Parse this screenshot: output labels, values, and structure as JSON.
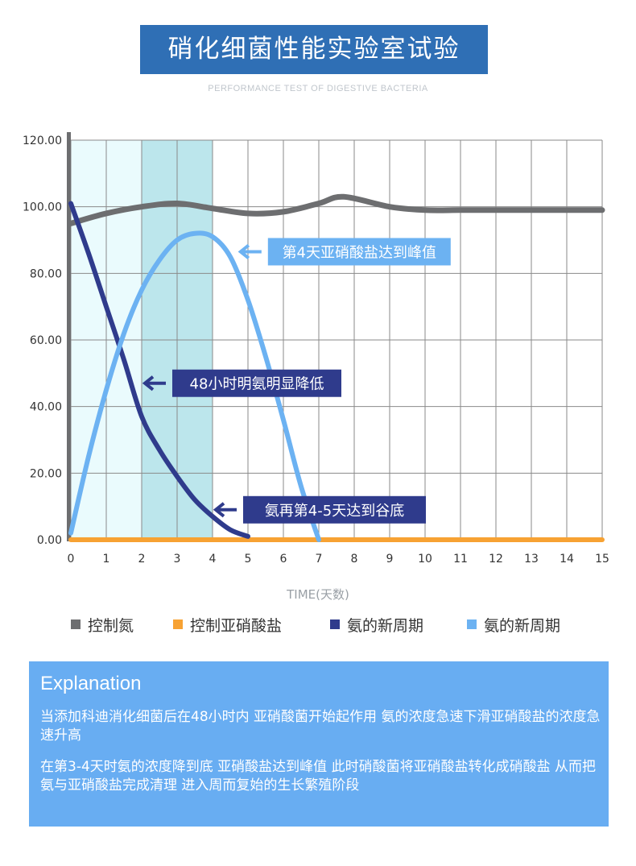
{
  "header": {
    "title": "硝化细菌性能实验室试验",
    "subtitle": "PERFORMANCE TEST OF DIGESTIVE BACTERIA"
  },
  "chart_data": {
    "type": "line",
    "xlabel": "TIME(天数)",
    "ylabel": "",
    "xlim": [
      0,
      15
    ],
    "ylim": [
      0,
      120
    ],
    "x_ticks": [
      "0",
      "1",
      "2",
      "3",
      "4",
      "5",
      "6",
      "7",
      "8",
      "9",
      "10",
      "11",
      "12",
      "13",
      "14",
      "15"
    ],
    "y_ticks": [
      "0.00",
      "20.00",
      "40.00",
      "60.00",
      "80.00",
      "100.00",
      "120.00"
    ],
    "grid": true,
    "highlight_bands": [
      {
        "x0": 0,
        "x1": 2,
        "color": "#eafbfd"
      },
      {
        "x0": 2,
        "x1": 4,
        "color": "#bce6ec"
      }
    ],
    "series": [
      {
        "name": "控制氮",
        "color": "#6d6e70",
        "x": [
          0,
          1,
          2,
          3,
          4,
          5,
          6,
          7,
          7.7,
          9,
          10,
          11,
          12,
          13,
          14,
          15
        ],
        "y": [
          95,
          98,
          100,
          101,
          99.5,
          98,
          98.5,
          101,
          103,
          100,
          99,
          99,
          99,
          99,
          99,
          99
        ]
      },
      {
        "name": "控制亚硝酸盐",
        "color": "#f7a233",
        "x": [
          0,
          15
        ],
        "y": [
          0,
          0
        ]
      },
      {
        "name": "氨的新周期",
        "color": "#2f3b8c",
        "x": [
          0,
          0.5,
          1,
          1.5,
          2,
          2.5,
          3,
          3.5,
          4,
          4.5,
          5
        ],
        "y": [
          101,
          86,
          70,
          54,
          37,
          27,
          19,
          12,
          7,
          3,
          1
        ]
      },
      {
        "name": "氨的新周期",
        "color": "#6cb2f2",
        "x": [
          0,
          0.5,
          1,
          1.5,
          2,
          2.5,
          3,
          3.5,
          4,
          4.5,
          5,
          5.5,
          6,
          6.5,
          7
        ],
        "y": [
          2,
          25,
          45,
          62,
          75,
          84,
          90,
          92,
          91,
          85,
          72,
          55,
          36,
          16,
          0
        ]
      }
    ],
    "annotations": [
      {
        "text": "第4天亚硝酸盐达到峰值",
        "bg": "#6cb2f2",
        "arrow_color": "#6cb2f2",
        "x": 4.7,
        "y": 86.5
      },
      {
        "text": "48小时明氨明显降低",
        "bg": "#2f3b8c",
        "arrow_color": "#2f3b8c",
        "x": 2.0,
        "y": 47
      },
      {
        "text": "氨再第4-5天达到谷底",
        "bg": "#2f3b8c",
        "arrow_color": "#2f3b8c",
        "x": 4.0,
        "y": 9
      }
    ]
  },
  "legend": {
    "items": [
      {
        "label": "控制氮",
        "color": "#6d6e70"
      },
      {
        "label": "控制亚硝酸盐",
        "color": "#f7a233"
      },
      {
        "label": "氨的新周期",
        "color": "#2f3b8c"
      },
      {
        "label": "氨的新周期",
        "color": "#6cb2f2"
      }
    ]
  },
  "explanation": {
    "title": "Explanation",
    "para1": "当添加科迪消化细菌后在48小时内 亚硝酸菌开始起作用 氨的浓度急速下滑亚硝酸盐的浓度急速升高",
    "para2": "在第3-4天时氨的浓度降到底 亚硝酸盐达到峰值 此时硝酸菌将亚硝酸盐转化成硝酸盐 从而把氨与亚硝酸盐完成清理 进入周而复始的生长繁殖阶段"
  }
}
